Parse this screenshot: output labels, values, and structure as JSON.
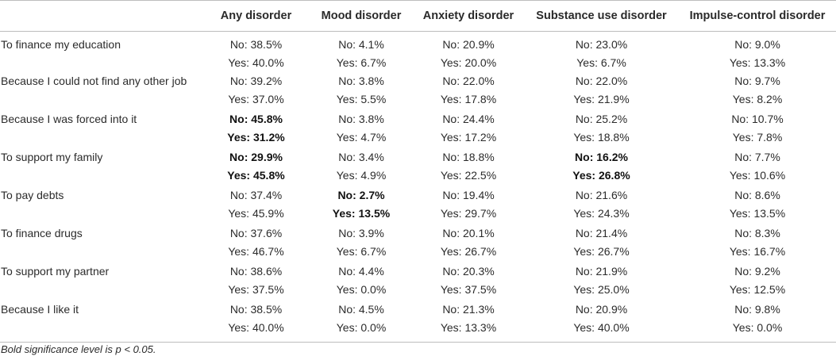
{
  "columns": [
    "",
    "Any disorder",
    "Mood disorder",
    "Anxiety disorder",
    "Substance use disorder",
    "Impulse-control disorder"
  ],
  "rows": [
    {
      "label": "To finance my education",
      "cells": [
        {
          "no": "No: 38.5%",
          "yes": "Yes: 40.0%",
          "bold": false
        },
        {
          "no": "No: 4.1%",
          "yes": "Yes: 6.7%",
          "bold": false
        },
        {
          "no": "No: 20.9%",
          "yes": "Yes: 20.0%",
          "bold": false
        },
        {
          "no": "No: 23.0%",
          "yes": "Yes: 6.7%",
          "bold": false
        },
        {
          "no": "No: 9.0%",
          "yes": "Yes: 13.3%",
          "bold": false
        }
      ]
    },
    {
      "label": "Because I could not find any other job",
      "cells": [
        {
          "no": "No: 39.2%",
          "yes": "Yes: 37.0%",
          "bold": false
        },
        {
          "no": "No: 3.8%",
          "yes": "Yes: 5.5%",
          "bold": false
        },
        {
          "no": "No: 22.0%",
          "yes": "Yes: 17.8%",
          "bold": false
        },
        {
          "no": "No: 22.0%",
          "yes": "Yes: 21.9%",
          "bold": false
        },
        {
          "no": "No: 9.7%",
          "yes": "Yes: 8.2%",
          "bold": false
        }
      ]
    },
    {
      "label": "Because I was forced into it",
      "cells": [
        {
          "no": "No: 45.8%",
          "yes": "Yes: 31.2%",
          "bold": true
        },
        {
          "no": "No: 3.8%",
          "yes": "Yes: 4.7%",
          "bold": false
        },
        {
          "no": "No: 24.4%",
          "yes": "Yes: 17.2%",
          "bold": false
        },
        {
          "no": "No: 25.2%",
          "yes": "Yes: 18.8%",
          "bold": false
        },
        {
          "no": "No: 10.7%",
          "yes": "Yes: 7.8%",
          "bold": false
        }
      ]
    },
    {
      "label": "To support my family",
      "cells": [
        {
          "no": "No: 29.9%",
          "yes": "Yes: 45.8%",
          "bold": true
        },
        {
          "no": "No: 3.4%",
          "yes": "Yes: 4.9%",
          "bold": false
        },
        {
          "no": "No: 18.8%",
          "yes": "Yes: 22.5%",
          "bold": false
        },
        {
          "no": "No: 16.2%",
          "yes": "Yes: 26.8%",
          "bold": true
        },
        {
          "no": "No: 7.7%",
          "yes": "Yes: 10.6%",
          "bold": false
        }
      ]
    },
    {
      "label": "To pay debts",
      "cells": [
        {
          "no": "No: 37.4%",
          "yes": "Yes: 45.9%",
          "bold": false
        },
        {
          "no": "No: 2.7%",
          "yes": "Yes: 13.5%",
          "bold": true
        },
        {
          "no": "No: 19.4%",
          "yes": "Yes: 29.7%",
          "bold": false
        },
        {
          "no": "No: 21.6%",
          "yes": "Yes: 24.3%",
          "bold": false
        },
        {
          "no": "No: 8.6%",
          "yes": "Yes: 13.5%",
          "bold": false
        }
      ]
    },
    {
      "label": "To finance drugs",
      "cells": [
        {
          "no": "No: 37.6%",
          "yes": "Yes: 46.7%",
          "bold": false
        },
        {
          "no": "No: 3.9%",
          "yes": "Yes: 6.7%",
          "bold": false
        },
        {
          "no": "No: 20.1%",
          "yes": "Yes: 26.7%",
          "bold": false
        },
        {
          "no": "No: 21.4%",
          "yes": "Yes: 26.7%",
          "bold": false
        },
        {
          "no": "No: 8.3%",
          "yes": "Yes: 16.7%",
          "bold": false
        }
      ]
    },
    {
      "label": "To support my partner",
      "cells": [
        {
          "no": "No: 38.6%",
          "yes": "Yes: 37.5%",
          "bold": false
        },
        {
          "no": "No: 4.4%",
          "yes": "Yes: 0.0%",
          "bold": false
        },
        {
          "no": "No: 20.3%",
          "yes": "Yes: 37.5%",
          "bold": false
        },
        {
          "no": "No: 21.9%",
          "yes": "Yes: 25.0%",
          "bold": false
        },
        {
          "no": "No: 9.2%",
          "yes": "Yes: 12.5%",
          "bold": false
        }
      ]
    },
    {
      "label": "Because I like it",
      "cells": [
        {
          "no": "No: 38.5%",
          "yes": "Yes: 40.0%",
          "bold": false
        },
        {
          "no": "No: 4.5%",
          "yes": "Yes: 0.0%",
          "bold": false
        },
        {
          "no": "No: 21.3%",
          "yes": "Yes: 13.3%",
          "bold": false
        },
        {
          "no": "No: 20.9%",
          "yes": "Yes: 40.0%",
          "bold": false
        },
        {
          "no": "No: 9.8%",
          "yes": "Yes: 0.0%",
          "bold": false
        }
      ]
    }
  ],
  "footnote": "Bold significance level is p < 0.05."
}
